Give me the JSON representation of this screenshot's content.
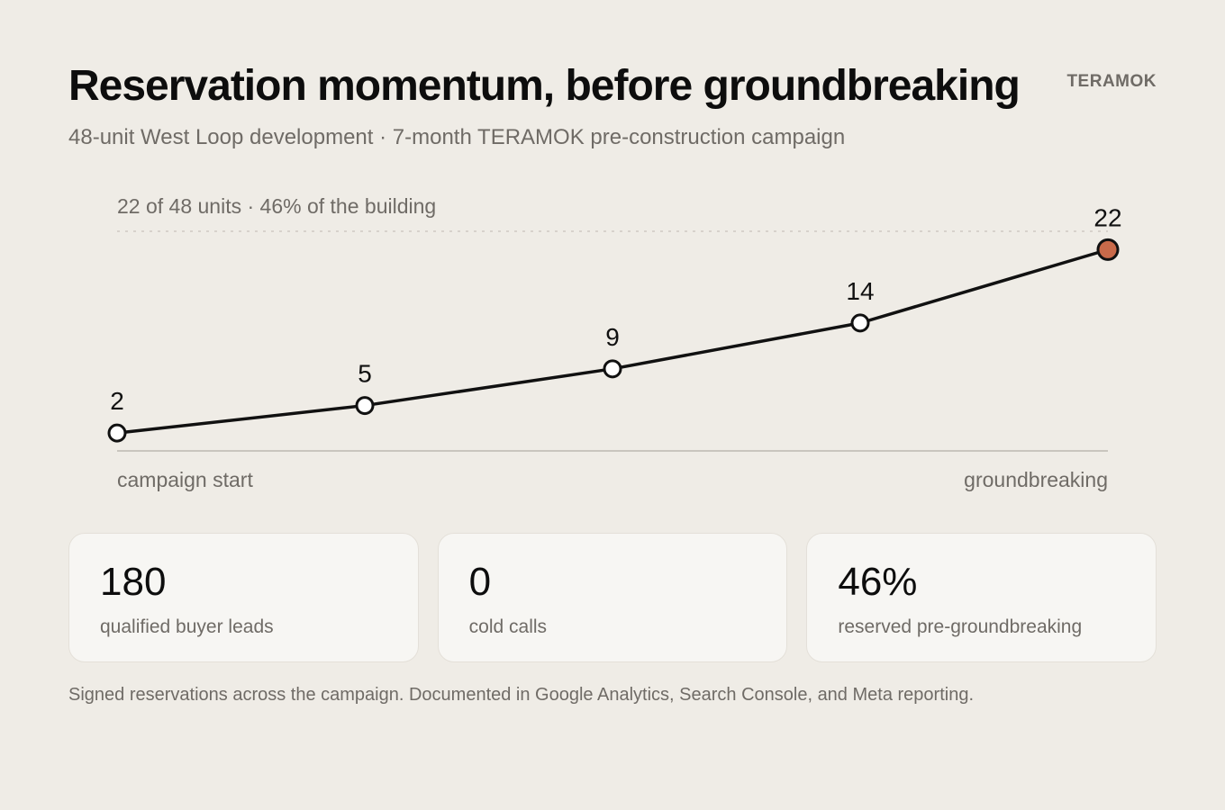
{
  "header": {
    "title": "Reservation momentum, before groundbreaking",
    "subtitle": "48-unit West Loop development · 7-month TERAMOK pre-construction campaign",
    "brand": "TERAMOK"
  },
  "chart_data": {
    "type": "line",
    "values": [
      2,
      5,
      9,
      14,
      22
    ],
    "data_labels": [
      "2",
      "5",
      "9",
      "14",
      "22"
    ],
    "x_labels": {
      "start": "campaign start",
      "end": "groundbreaking"
    },
    "reference_line": {
      "value": 24,
      "label": "22 of 48 units · 46% of the building"
    },
    "ylim": [
      0,
      24
    ],
    "grid": false,
    "highlight_last": true,
    "colors": {
      "line": "#111111",
      "point_fill": "#ffffff",
      "highlight": "#c96a4a",
      "axis": "#c9c5be",
      "reference": "#cfcac3"
    }
  },
  "stats": [
    {
      "value": "180",
      "label": "qualified buyer leads"
    },
    {
      "value": "0",
      "label": "cold calls"
    },
    {
      "value": "46%",
      "label": "reserved pre-groundbreaking"
    }
  ],
  "footnote": "Signed reservations across the campaign. Documented in Google Analytics, Search Console, and Meta reporting."
}
